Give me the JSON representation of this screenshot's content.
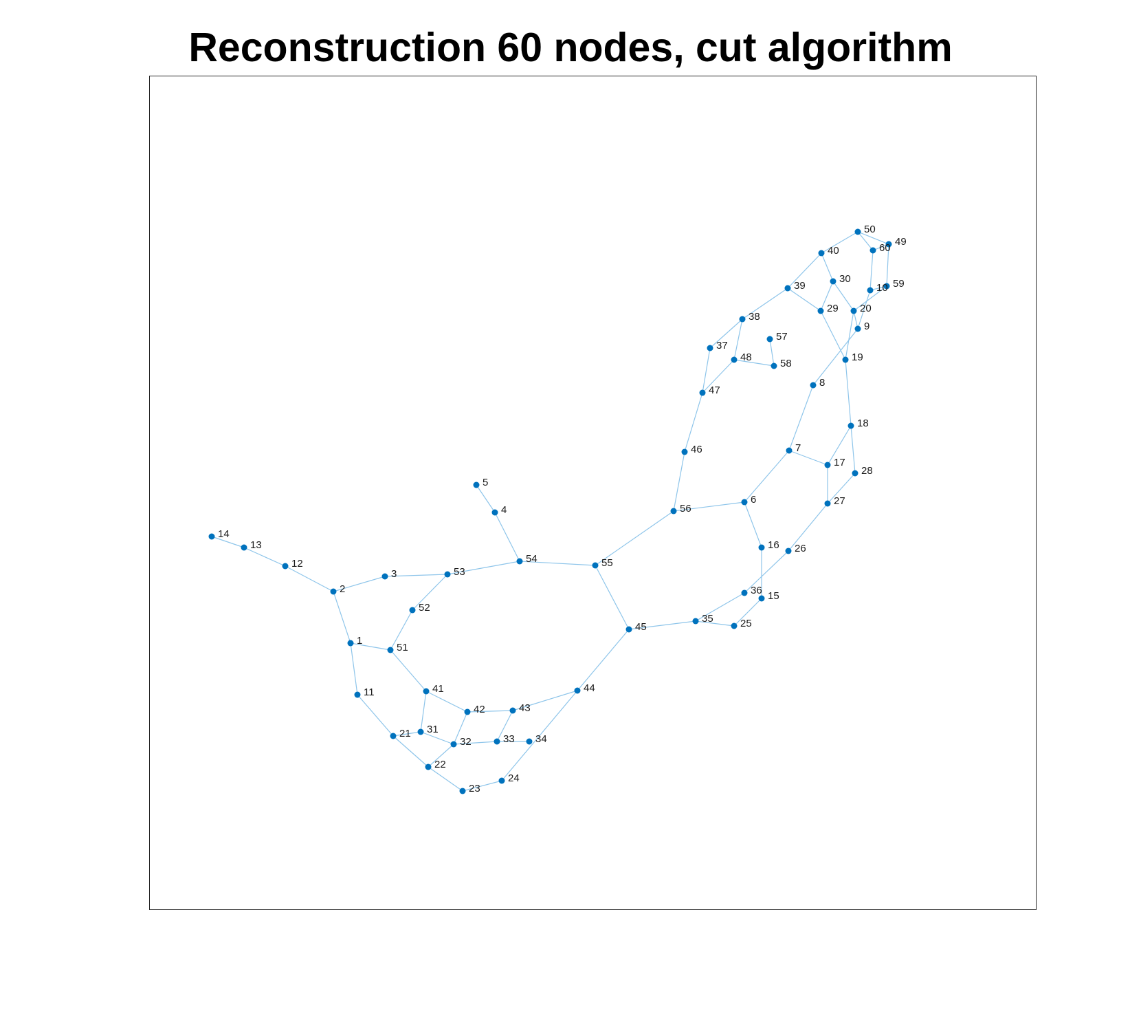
{
  "title": "Reconstruction 60 nodes, cut algorithm",
  "colors": {
    "node": "#0072bd",
    "edge": "#8ec5ea",
    "frame": "#262626",
    "background": "#ffffff"
  },
  "chart_data": {
    "type": "network",
    "title": "Reconstruction 60 nodes, cut algorithm",
    "xlabel": "",
    "ylabel": "",
    "axis_ticks": false,
    "grid": false,
    "nodes": [
      {
        "id": "1",
        "x": -3.8,
        "y": -1.45
      },
      {
        "id": "2",
        "x": -4.05,
        "y": -0.7
      },
      {
        "id": "3",
        "x": -3.3,
        "y": -0.48
      },
      {
        "id": "4",
        "x": -1.7,
        "y": 0.45
      },
      {
        "id": "5",
        "x": -1.97,
        "y": 0.85
      },
      {
        "id": "6",
        "x": 1.93,
        "y": 0.6
      },
      {
        "id": "7",
        "x": 2.58,
        "y": 1.35
      },
      {
        "id": "8",
        "x": 2.93,
        "y": 2.3
      },
      {
        "id": "9",
        "x": 3.58,
        "y": 3.12
      },
      {
        "id": "10",
        "x": 3.76,
        "y": 3.68
      },
      {
        "id": "11",
        "x": -3.7,
        "y": -2.2
      },
      {
        "id": "12",
        "x": -4.75,
        "y": -0.33
      },
      {
        "id": "13",
        "x": -5.35,
        "y": -0.06
      },
      {
        "id": "14",
        "x": -5.82,
        "y": 0.1
      },
      {
        "id": "15",
        "x": 2.18,
        "y": -0.8
      },
      {
        "id": "16",
        "x": 2.18,
        "y": -0.06
      },
      {
        "id": "17",
        "x": 3.14,
        "y": 1.14
      },
      {
        "id": "18",
        "x": 3.48,
        "y": 1.71
      },
      {
        "id": "19",
        "x": 3.4,
        "y": 2.67
      },
      {
        "id": "20",
        "x": 3.52,
        "y": 3.38
      },
      {
        "id": "21",
        "x": -3.18,
        "y": -2.8
      },
      {
        "id": "22",
        "x": -2.67,
        "y": -3.25
      },
      {
        "id": "23",
        "x": -2.17,
        "y": -3.6
      },
      {
        "id": "24",
        "x": -1.6,
        "y": -3.45
      },
      {
        "id": "25",
        "x": 1.78,
        "y": -1.2
      },
      {
        "id": "26",
        "x": 2.57,
        "y": -0.11
      },
      {
        "id": "27",
        "x": 3.14,
        "y": 0.58
      },
      {
        "id": "28",
        "x": 3.54,
        "y": 1.02
      },
      {
        "id": "29",
        "x": 3.04,
        "y": 3.38
      },
      {
        "id": "30",
        "x": 3.22,
        "y": 3.81
      },
      {
        "id": "31",
        "x": -2.78,
        "y": -2.74
      },
      {
        "id": "32",
        "x": -2.3,
        "y": -2.92
      },
      {
        "id": "33",
        "x": -1.67,
        "y": -2.88
      },
      {
        "id": "34",
        "x": -1.2,
        "y": -2.88
      },
      {
        "id": "35",
        "x": 1.22,
        "y": -1.13
      },
      {
        "id": "36",
        "x": 1.93,
        "y": -0.72
      },
      {
        "id": "37",
        "x": 1.43,
        "y": 2.84
      },
      {
        "id": "38",
        "x": 1.9,
        "y": 3.26
      },
      {
        "id": "39",
        "x": 2.56,
        "y": 3.71
      },
      {
        "id": "40",
        "x": 3.05,
        "y": 4.22
      },
      {
        "id": "41",
        "x": -2.7,
        "y": -2.15
      },
      {
        "id": "42",
        "x": -2.1,
        "y": -2.45
      },
      {
        "id": "43",
        "x": -1.44,
        "y": -2.43
      },
      {
        "id": "44",
        "x": -0.5,
        "y": -2.14
      },
      {
        "id": "45",
        "x": 0.25,
        "y": -1.25
      },
      {
        "id": "46",
        "x": 1.06,
        "y": 1.33
      },
      {
        "id": "47",
        "x": 1.32,
        "y": 2.19
      },
      {
        "id": "48",
        "x": 1.78,
        "y": 2.67
      },
      {
        "id": "49",
        "x": 4.03,
        "y": 4.35
      },
      {
        "id": "50",
        "x": 3.58,
        "y": 4.53
      },
      {
        "id": "51",
        "x": -3.22,
        "y": -1.55
      },
      {
        "id": "52",
        "x": -2.9,
        "y": -0.97
      },
      {
        "id": "53",
        "x": -2.39,
        "y": -0.45
      },
      {
        "id": "54",
        "x": -1.34,
        "y": -0.26
      },
      {
        "id": "55",
        "x": -0.24,
        "y": -0.32
      },
      {
        "id": "56",
        "x": 0.9,
        "y": 0.47
      },
      {
        "id": "57",
        "x": 2.3,
        "y": 2.97
      },
      {
        "id": "58",
        "x": 2.36,
        "y": 2.58
      },
      {
        "id": "59",
        "x": 4.0,
        "y": 3.74
      },
      {
        "id": "60",
        "x": 3.8,
        "y": 4.26
      }
    ],
    "edges": [
      [
        "14",
        "13"
      ],
      [
        "13",
        "12"
      ],
      [
        "12",
        "2"
      ],
      [
        "2",
        "3"
      ],
      [
        "2",
        "1"
      ],
      [
        "3",
        "53"
      ],
      [
        "53",
        "54"
      ],
      [
        "53",
        "52"
      ],
      [
        "52",
        "51"
      ],
      [
        "1",
        "51"
      ],
      [
        "1",
        "11"
      ],
      [
        "11",
        "21"
      ],
      [
        "21",
        "31"
      ],
      [
        "21",
        "22"
      ],
      [
        "31",
        "41"
      ],
      [
        "31",
        "32"
      ],
      [
        "51",
        "41"
      ],
      [
        "41",
        "42"
      ],
      [
        "42",
        "43"
      ],
      [
        "42",
        "32"
      ],
      [
        "32",
        "22"
      ],
      [
        "32",
        "33"
      ],
      [
        "33",
        "34"
      ],
      [
        "33",
        "43"
      ],
      [
        "43",
        "44"
      ],
      [
        "22",
        "23"
      ],
      [
        "23",
        "24"
      ],
      [
        "24",
        "44"
      ],
      [
        "44",
        "45"
      ],
      [
        "45",
        "55"
      ],
      [
        "45",
        "35"
      ],
      [
        "35",
        "25"
      ],
      [
        "35",
        "36"
      ],
      [
        "25",
        "15"
      ],
      [
        "36",
        "26"
      ],
      [
        "15",
        "16"
      ],
      [
        "16",
        "6"
      ],
      [
        "26",
        "27"
      ],
      [
        "27",
        "28"
      ],
      [
        "27",
        "17"
      ],
      [
        "17",
        "7"
      ],
      [
        "17",
        "18"
      ],
      [
        "18",
        "28"
      ],
      [
        "18",
        "19"
      ],
      [
        "7",
        "6"
      ],
      [
        "7",
        "8"
      ],
      [
        "6",
        "56"
      ],
      [
        "56",
        "55"
      ],
      [
        "56",
        "46"
      ],
      [
        "55",
        "54"
      ],
      [
        "54",
        "4"
      ],
      [
        "4",
        "5"
      ],
      [
        "46",
        "47"
      ],
      [
        "47",
        "37"
      ],
      [
        "47",
        "48"
      ],
      [
        "37",
        "38"
      ],
      [
        "38",
        "48"
      ],
      [
        "38",
        "39"
      ],
      [
        "48",
        "58"
      ],
      [
        "58",
        "57"
      ],
      [
        "8",
        "9"
      ],
      [
        "9",
        "10"
      ],
      [
        "9",
        "20"
      ],
      [
        "19",
        "20"
      ],
      [
        "19",
        "29"
      ],
      [
        "29",
        "39"
      ],
      [
        "29",
        "30"
      ],
      [
        "30",
        "40"
      ],
      [
        "30",
        "20"
      ],
      [
        "39",
        "40"
      ],
      [
        "40",
        "50"
      ],
      [
        "50",
        "49"
      ],
      [
        "50",
        "60"
      ],
      [
        "60",
        "10"
      ],
      [
        "60",
        "49"
      ],
      [
        "49",
        "59"
      ],
      [
        "59",
        "10"
      ],
      [
        "59",
        "20"
      ]
    ]
  }
}
